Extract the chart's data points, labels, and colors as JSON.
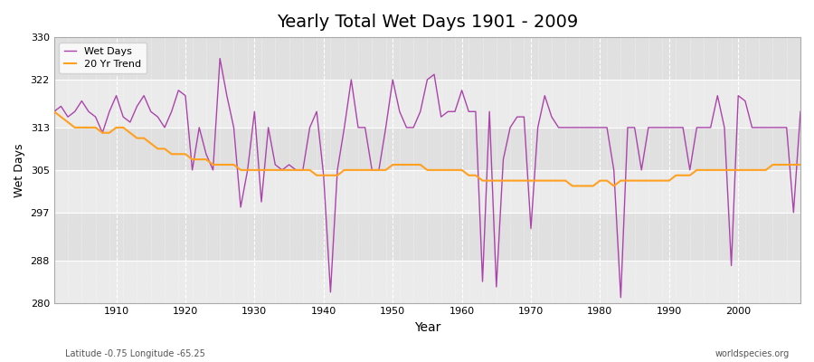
{
  "title": "Yearly Total Wet Days 1901 - 2009",
  "xlabel": "Year",
  "ylabel": "Wet Days",
  "subtitle_left": "Latitude -0.75 Longitude -65.25",
  "watermark": "worldspecies.org",
  "line_color": "#AA44AA",
  "trend_color": "#FFA020",
  "bg_color": "#EBEBEB",
  "bg_band_color": "#E0E0E0",
  "fig_bg_color": "#FFFFFF",
  "ylim": [
    280,
    330
  ],
  "yticks": [
    280,
    288,
    297,
    305,
    313,
    322,
    330
  ],
  "xlim": [
    1901,
    2009
  ],
  "xticks": [
    1910,
    1920,
    1930,
    1940,
    1950,
    1960,
    1970,
    1980,
    1990,
    2000
  ],
  "years": [
    1901,
    1902,
    1903,
    1904,
    1905,
    1906,
    1907,
    1908,
    1909,
    1910,
    1911,
    1912,
    1913,
    1914,
    1915,
    1916,
    1917,
    1918,
    1919,
    1920,
    1921,
    1922,
    1923,
    1924,
    1925,
    1926,
    1927,
    1928,
    1929,
    1930,
    1931,
    1932,
    1933,
    1934,
    1935,
    1936,
    1937,
    1938,
    1939,
    1940,
    1941,
    1942,
    1943,
    1944,
    1945,
    1946,
    1947,
    1948,
    1949,
    1950,
    1951,
    1952,
    1953,
    1954,
    1955,
    1956,
    1957,
    1958,
    1959,
    1960,
    1961,
    1962,
    1963,
    1964,
    1965,
    1966,
    1967,
    1968,
    1969,
    1970,
    1971,
    1972,
    1973,
    1974,
    1975,
    1976,
    1977,
    1978,
    1979,
    1980,
    1981,
    1982,
    1983,
    1984,
    1985,
    1986,
    1987,
    1988,
    1989,
    1990,
    1991,
    1992,
    1993,
    1994,
    1995,
    1996,
    1997,
    1998,
    1999,
    2000,
    2001,
    2002,
    2003,
    2004,
    2005,
    2006,
    2007,
    2008,
    2009
  ],
  "wet_days": [
    316,
    317,
    315,
    316,
    318,
    316,
    315,
    312,
    316,
    319,
    315,
    314,
    317,
    319,
    316,
    315,
    313,
    316,
    320,
    319,
    305,
    313,
    308,
    305,
    326,
    319,
    313,
    298,
    305,
    316,
    299,
    313,
    306,
    305,
    306,
    305,
    305,
    313,
    316,
    304,
    282,
    305,
    313,
    322,
    313,
    313,
    305,
    305,
    313,
    322,
    316,
    313,
    313,
    316,
    322,
    323,
    315,
    316,
    316,
    320,
    316,
    316,
    284,
    316,
    283,
    307,
    313,
    315,
    315,
    294,
    313,
    319,
    315,
    313,
    313,
    313,
    313,
    313,
    313,
    313,
    313,
    305,
    281,
    313,
    313,
    305,
    313,
    313,
    313,
    313,
    313,
    313,
    305,
    313,
    313,
    313,
    319,
    313,
    287,
    319,
    318,
    313,
    313,
    313,
    313,
    313,
    313,
    297,
    316
  ],
  "trend": [
    316,
    315,
    314,
    313,
    313,
    313,
    313,
    312,
    312,
    313,
    313,
    312,
    311,
    311,
    310,
    309,
    309,
    308,
    308,
    308,
    307,
    307,
    307,
    306,
    306,
    306,
    306,
    305,
    305,
    305,
    305,
    305,
    305,
    305,
    305,
    305,
    305,
    305,
    304,
    304,
    304,
    304,
    305,
    305,
    305,
    305,
    305,
    305,
    305,
    306,
    306,
    306,
    306,
    306,
    305,
    305,
    305,
    305,
    305,
    305,
    304,
    304,
    303,
    303,
    303,
    303,
    303,
    303,
    303,
    303,
    303,
    303,
    303,
    303,
    303,
    302,
    302,
    302,
    302,
    303,
    303,
    302,
    303,
    303,
    303,
    303,
    303,
    303,
    303,
    303,
    304,
    304,
    304,
    305,
    305,
    305,
    305,
    305,
    305,
    305,
    305,
    305,
    305,
    305,
    306,
    306,
    306,
    306,
    306
  ]
}
